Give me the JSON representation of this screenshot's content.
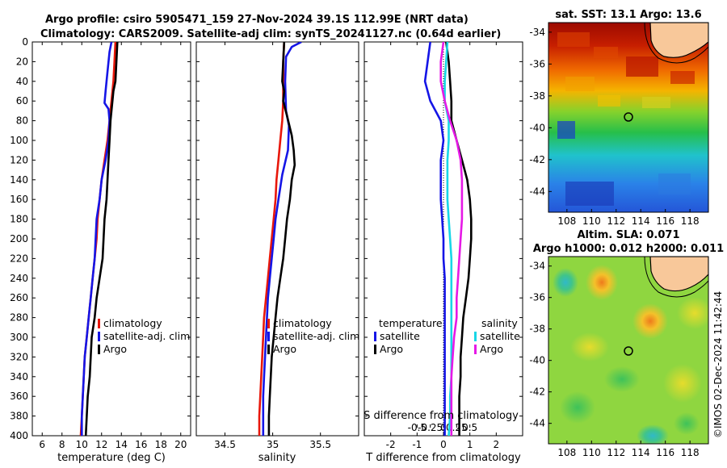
{
  "header": {
    "title_line1": "Argo profile: csiro 5905471_159 27-Nov-2024 39.1S 112.99E (NRT data)",
    "title_line2": "Climatology: CARS2009. Satellite-adj clim: synTS_20241127.nc (0.64d earlier)"
  },
  "colors": {
    "climatology": "#e8170a",
    "satellite": "#1515e6",
    "argo": "#000000",
    "satellite_salinity": "#18d6e6",
    "argo_salinity": "#e619e6"
  },
  "credit": "©IMOS 02-Dec-2024 11:42:44",
  "chart_data": [
    {
      "type": "line",
      "name": "temperature",
      "xlabel": "temperature (deg C)",
      "ylabel": "",
      "xlim": [
        5,
        21
      ],
      "ylim": [
        400,
        0
      ],
      "x_ticks": [
        6,
        8,
        10,
        12,
        14,
        16,
        18,
        20
      ],
      "y_ticks": [
        0,
        20,
        40,
        60,
        80,
        100,
        120,
        140,
        160,
        180,
        200,
        220,
        240,
        260,
        280,
        300,
        320,
        340,
        360,
        380,
        400
      ],
      "legend": [
        "climatology",
        "satellite-adj. clim",
        "Argo"
      ],
      "series": [
        {
          "name": "climatology",
          "color_key": "climatology",
          "points": [
            [
              13.4,
              0
            ],
            [
              13.3,
              20
            ],
            [
              13.2,
              40
            ],
            [
              13.0,
              60
            ],
            [
              12.8,
              80
            ],
            [
              12.6,
              100
            ],
            [
              12.3,
              120
            ],
            [
              12.0,
              140
            ],
            [
              11.8,
              160
            ],
            [
              11.6,
              180
            ],
            [
              11.5,
              200
            ],
            [
              11.3,
              220
            ],
            [
              11.1,
              240
            ],
            [
              10.9,
              260
            ],
            [
              10.7,
              280
            ],
            [
              10.5,
              300
            ],
            [
              10.3,
              320
            ],
            [
              10.2,
              340
            ],
            [
              10.1,
              360
            ],
            [
              10.0,
              380
            ],
            [
              9.9,
              400
            ]
          ]
        },
        {
          "name": "satellite-adj. clim",
          "color_key": "satellite",
          "points": [
            [
              13.0,
              0
            ],
            [
              12.8,
              10
            ],
            [
              12.6,
              30
            ],
            [
              12.4,
              50
            ],
            [
              12.3,
              62
            ],
            [
              12.7,
              68
            ],
            [
              12.8,
              80
            ],
            [
              12.7,
              100
            ],
            [
              12.4,
              120
            ],
            [
              12.0,
              140
            ],
            [
              11.8,
              160
            ],
            [
              11.5,
              180
            ],
            [
              11.4,
              200
            ],
            [
              11.3,
              220
            ],
            [
              11.1,
              240
            ],
            [
              10.9,
              260
            ],
            [
              10.7,
              280
            ],
            [
              10.5,
              300
            ],
            [
              10.3,
              320
            ],
            [
              10.2,
              340
            ],
            [
              10.1,
              360
            ],
            [
              10.0,
              380
            ],
            [
              10.0,
              400
            ]
          ]
        },
        {
          "name": "Argo",
          "color_key": "argo",
          "points": [
            [
              13.6,
              0
            ],
            [
              13.5,
              20
            ],
            [
              13.4,
              40
            ],
            [
              13.2,
              50
            ],
            [
              13.1,
              60
            ],
            [
              13.0,
              70
            ],
            [
              12.9,
              80
            ],
            [
              12.8,
              100
            ],
            [
              12.7,
              120
            ],
            [
              12.6,
              140
            ],
            [
              12.5,
              160
            ],
            [
              12.3,
              180
            ],
            [
              12.2,
              200
            ],
            [
              12.1,
              220
            ],
            [
              11.8,
              240
            ],
            [
              11.5,
              260
            ],
            [
              11.3,
              280
            ],
            [
              11.0,
              300
            ],
            [
              10.9,
              320
            ],
            [
              10.8,
              340
            ],
            [
              10.6,
              360
            ],
            [
              10.5,
              380
            ],
            [
              10.4,
              400
            ]
          ]
        }
      ]
    },
    {
      "type": "line",
      "name": "salinity",
      "xlabel": "salinity",
      "ylabel": "",
      "xlim": [
        34.2,
        35.9
      ],
      "ylim": [
        400,
        0
      ],
      "x_ticks": [
        34.5,
        35,
        35.5
      ],
      "y_ticks": [
        0,
        20,
        40,
        60,
        80,
        100,
        120,
        140,
        160,
        180,
        200,
        220,
        240,
        260,
        280,
        300,
        320,
        340,
        360,
        380,
        400
      ],
      "legend": [
        "climatology",
        "satellite-adj. clim",
        "Argo"
      ],
      "series": [
        {
          "name": "climatology",
          "color_key": "climatology",
          "points": [
            [
              35.12,
              0
            ],
            [
              35.11,
              20
            ],
            [
              35.11,
              40
            ],
            [
              35.11,
              60
            ],
            [
              35.1,
              80
            ],
            [
              35.08,
              100
            ],
            [
              35.06,
              120
            ],
            [
              35.04,
              140
            ],
            [
              35.03,
              160
            ],
            [
              35.01,
              180
            ],
            [
              34.99,
              200
            ],
            [
              34.97,
              220
            ],
            [
              34.95,
              240
            ],
            [
              34.93,
              260
            ],
            [
              34.91,
              280
            ],
            [
              34.9,
              300
            ],
            [
              34.89,
              320
            ],
            [
              34.88,
              340
            ],
            [
              34.87,
              360
            ],
            [
              34.86,
              380
            ],
            [
              34.86,
              400
            ]
          ]
        },
        {
          "name": "satellite-adj. clim",
          "color_key": "satellite",
          "points": [
            [
              35.3,
              0
            ],
            [
              35.2,
              5
            ],
            [
              35.14,
              15
            ],
            [
              35.13,
              40
            ],
            [
              35.14,
              70
            ],
            [
              35.17,
              85
            ],
            [
              35.16,
              110
            ],
            [
              35.1,
              135
            ],
            [
              35.06,
              160
            ],
            [
              35.03,
              180
            ],
            [
              35.01,
              200
            ],
            [
              34.99,
              220
            ],
            [
              34.97,
              240
            ],
            [
              34.95,
              260
            ],
            [
              34.94,
              280
            ],
            [
              34.93,
              300
            ],
            [
              34.92,
              320
            ],
            [
              34.91,
              340
            ],
            [
              34.9,
              360
            ],
            [
              34.9,
              380
            ],
            [
              34.9,
              400
            ]
          ]
        },
        {
          "name": "Argo",
          "color_key": "argo",
          "points": [
            [
              35.12,
              0
            ],
            [
              35.11,
              20
            ],
            [
              35.1,
              40
            ],
            [
              35.12,
              50
            ],
            [
              35.11,
              60
            ],
            [
              35.15,
              75
            ],
            [
              35.2,
              95
            ],
            [
              35.22,
              110
            ],
            [
              35.23,
              125
            ],
            [
              35.2,
              140
            ],
            [
              35.18,
              160
            ],
            [
              35.15,
              180
            ],
            [
              35.13,
              200
            ],
            [
              35.11,
              220
            ],
            [
              35.08,
              240
            ],
            [
              35.05,
              260
            ],
            [
              35.03,
              280
            ],
            [
              35.01,
              300
            ],
            [
              34.99,
              320
            ],
            [
              34.98,
              340
            ],
            [
              34.97,
              360
            ],
            [
              34.96,
              380
            ],
            [
              34.96,
              400
            ]
          ]
        }
      ]
    },
    {
      "type": "line",
      "name": "difference_from_climatology",
      "xlabel": "T difference from climatology",
      "top_axis_label": "S difference from climatology",
      "xlim": [
        -3,
        3
      ],
      "ylim": [
        400,
        0
      ],
      "x_ticks": [
        -2,
        -1,
        0,
        1,
        2
      ],
      "x_tick_labels": [
        "-2",
        "-1",
        "0",
        "1",
        "2"
      ],
      "s_ticks": [
        -0.5,
        -0.25,
        0,
        0.25,
        0.5
      ],
      "s_tick_labels": [
        "-0.5",
        "-0.25",
        "0",
        "0.25",
        "0.5"
      ],
      "legend_temperature": {
        "title": "temperature",
        "entries": [
          "satellite",
          "Argo"
        ]
      },
      "legend_salinity": {
        "title": "salinity",
        "entries": [
          "satellite",
          "Argo"
        ]
      },
      "series": [
        {
          "name": "temperature satellite",
          "color_key": "satellite",
          "points": [
            [
              -0.5,
              0
            ],
            [
              -0.6,
              20
            ],
            [
              -0.7,
              40
            ],
            [
              -0.5,
              60
            ],
            [
              -0.1,
              80
            ],
            [
              0.0,
              100
            ],
            [
              -0.1,
              120
            ],
            [
              -0.1,
              140
            ],
            [
              -0.1,
              160
            ],
            [
              -0.05,
              180
            ],
            [
              0.0,
              200
            ],
            [
              0.0,
              220
            ],
            [
              0.05,
              240
            ],
            [
              0.05,
              260
            ],
            [
              0.05,
              280
            ],
            [
              0.05,
              300
            ],
            [
              0.05,
              320
            ],
            [
              0.05,
              340
            ],
            [
              0.05,
              360
            ],
            [
              0.05,
              380
            ],
            [
              0.05,
              400
            ]
          ]
        },
        {
          "name": "temperature Argo",
          "color_key": "argo",
          "points": [
            [
              0.1,
              0
            ],
            [
              0.2,
              20
            ],
            [
              0.25,
              40
            ],
            [
              0.3,
              60
            ],
            [
              0.3,
              80
            ],
            [
              0.5,
              100
            ],
            [
              0.7,
              120
            ],
            [
              0.9,
              140
            ],
            [
              1.0,
              160
            ],
            [
              1.05,
              180
            ],
            [
              1.05,
              200
            ],
            [
              1.0,
              220
            ],
            [
              0.95,
              240
            ],
            [
              0.85,
              260
            ],
            [
              0.75,
              280
            ],
            [
              0.7,
              300
            ],
            [
              0.65,
              320
            ],
            [
              0.65,
              340
            ],
            [
              0.6,
              360
            ],
            [
              0.6,
              380
            ],
            [
              0.6,
              400
            ]
          ]
        },
        {
          "name": "salinity satellite",
          "color_key": "satellite_salinity",
          "points": [
            [
              0.15,
              0
            ],
            [
              0.1,
              20
            ],
            [
              0.05,
              40
            ],
            [
              0.05,
              60
            ],
            [
              0.2,
              80
            ],
            [
              0.2,
              100
            ],
            [
              0.15,
              120
            ],
            [
              0.15,
              140
            ],
            [
              0.15,
              160
            ],
            [
              0.2,
              180
            ],
            [
              0.25,
              200
            ],
            [
              0.3,
              220
            ],
            [
              0.3,
              240
            ],
            [
              0.3,
              260
            ],
            [
              0.3,
              280
            ],
            [
              0.3,
              300
            ],
            [
              0.3,
              320
            ],
            [
              0.3,
              340
            ],
            [
              0.25,
              360
            ],
            [
              0.25,
              380
            ],
            [
              0.2,
              400
            ]
          ]
        },
        {
          "name": "salinity Argo",
          "color_key": "argo_salinity",
          "points": [
            [
              0.0,
              0
            ],
            [
              -0.1,
              20
            ],
            [
              -0.1,
              40
            ],
            [
              0.05,
              60
            ],
            [
              0.25,
              80
            ],
            [
              0.5,
              100
            ],
            [
              0.65,
              120
            ],
            [
              0.7,
              140
            ],
            [
              0.7,
              160
            ],
            [
              0.7,
              180
            ],
            [
              0.65,
              200
            ],
            [
              0.6,
              220
            ],
            [
              0.55,
              240
            ],
            [
              0.5,
              260
            ],
            [
              0.5,
              280
            ],
            [
              0.4,
              300
            ],
            [
              0.35,
              320
            ],
            [
              0.3,
              340
            ],
            [
              0.3,
              360
            ],
            [
              0.3,
              380
            ],
            [
              0.3,
              400
            ]
          ]
        }
      ]
    },
    {
      "type": "heatmap",
      "name": "satellite_sst_map",
      "title": "sat. SST: 13.1 Argo: 13.6",
      "x_ticks": [
        108,
        110,
        112,
        114,
        116,
        118
      ],
      "y_ticks": [
        -34,
        -36,
        -38,
        -40,
        -42,
        -44
      ],
      "xlim": [
        106.5,
        119.5
      ],
      "ylim": [
        -45.3,
        -33.4
      ],
      "float_position": [
        112.99,
        -39.1
      ]
    },
    {
      "type": "heatmap",
      "name": "altimetry_sla_map",
      "title_line1": "Altim. SLA: 0.071",
      "title_line2": "Argo h1000: 0.012 h2000: 0.011",
      "x_ticks": [
        108,
        110,
        112,
        114,
        116,
        118
      ],
      "y_ticks": [
        -34,
        -36,
        -38,
        -40,
        -42,
        -44
      ],
      "xlim": [
        106.5,
        119.5
      ],
      "ylim": [
        -45.3,
        -33.4
      ],
      "float_position": [
        112.99,
        -39.1
      ]
    }
  ]
}
